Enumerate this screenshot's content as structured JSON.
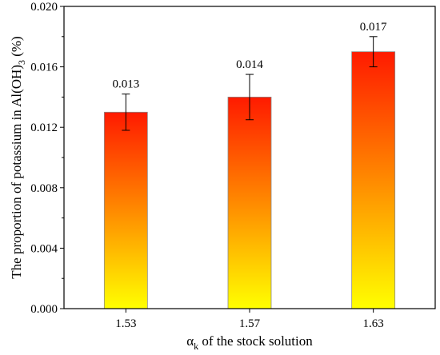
{
  "chart_data": {
    "type": "bar",
    "categories": [
      "1.53",
      "1.57",
      "1.63"
    ],
    "values": [
      0.013,
      0.014,
      0.017
    ],
    "errors": [
      0.0012,
      0.0015,
      0.001
    ],
    "data_labels": [
      "0.013",
      "0.014",
      "0.017"
    ],
    "ylim": [
      0,
      0.02
    ],
    "yticks": [
      0.0,
      0.004,
      0.008,
      0.012,
      0.016,
      0.02
    ],
    "ytick_labels": [
      "0.000",
      "0.004",
      "0.008",
      "0.012",
      "0.016",
      "0.020"
    ],
    "xlabel": {
      "main": "α",
      "sub": "k",
      "rest": " of the stock solution"
    },
    "ylabel": {
      "main": "The proportion of potassium in Al(OH)",
      "sub": "3",
      "rest": " (%)"
    },
    "grid": false,
    "legend": "none",
    "colors": {
      "bar_top": "#ff1a00",
      "bar_mid": "#ff8a00",
      "bar_bottom": "#ffff00",
      "axis": "#000000"
    }
  }
}
